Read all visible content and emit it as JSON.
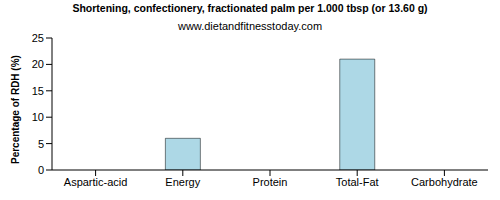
{
  "chart_data": {
    "type": "bar",
    "title": "Shortening, confectionery, fractionated palm per 1.000 tbsp (or 13.60 g)",
    "subtitle": "www.dietandfitnesstoday.com",
    "y_label": "Percentage of RDH (%)",
    "categories": [
      "Aspartic-acid",
      "Energy",
      "Protein",
      "Total-Fat",
      "Carbohydrate"
    ],
    "values": [
      0,
      6,
      0,
      21,
      0
    ],
    "color": "#add8e6",
    "ylim": [
      0,
      25
    ],
    "yticks": [
      0,
      5,
      10,
      15,
      20,
      25
    ],
    "grid": false
  }
}
